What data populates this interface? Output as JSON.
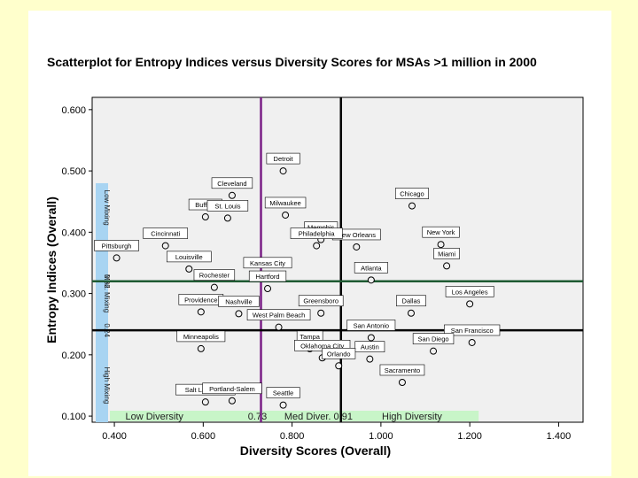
{
  "chart_data": {
    "type": "scatter",
    "title": "Scatterplot for Entropy Indices versus Diversity Scores for MSAs >1 million in 2000",
    "xlabel": "Diversity Scores (Overall)",
    "ylabel": "Entropy Indices (Overall)",
    "xlim": [
      0.35,
      1.455
    ],
    "ylim": [
      0.09,
      0.62
    ],
    "x_ticks": [
      "0.400",
      "0.600",
      "0.800",
      "1.000",
      "1.200",
      "1.400"
    ],
    "x_tick_values": [
      0.4,
      0.6,
      0.8,
      1.0,
      1.2,
      1.4
    ],
    "y_ticks": [
      "0.100",
      "0.200",
      "0.300",
      "0.400",
      "0.500",
      "0.600"
    ],
    "y_tick_values": [
      0.1,
      0.2,
      0.3,
      0.4,
      0.5,
      0.6
    ],
    "reference_lines": {
      "vertical": [
        {
          "x": 0.73,
          "color": "#7a1f86"
        },
        {
          "x": 0.91,
          "color": "#000000"
        }
      ],
      "horizontal": [
        {
          "y": 0.32,
          "color": "#1e5a32"
        },
        {
          "y": 0.24,
          "color": "#000000"
        }
      ]
    },
    "x_band": {
      "labels": [
        "Low Diversity",
        "0.73",
        "Med Diver.",
        "0.91",
        "High Diversity"
      ],
      "color": "#c8f5c8"
    },
    "y_band": {
      "labels": [
        "Low Mixing",
        "0.32",
        "Med. Mixing",
        "0.24",
        "High Mixing"
      ],
      "color": "#a8d4f2"
    },
    "points": [
      {
        "label": "Detroit",
        "x": 0.78,
        "y": 0.5
      },
      {
        "label": "Cleveland",
        "x": 0.665,
        "y": 0.46
      },
      {
        "label": "Buffalo",
        "x": 0.605,
        "y": 0.425
      },
      {
        "label": "Milwaukee",
        "x": 0.785,
        "y": 0.428
      },
      {
        "label": "St. Louis",
        "x": 0.655,
        "y": 0.423
      },
      {
        "label": "Chicago",
        "x": 1.07,
        "y": 0.443
      },
      {
        "label": "Cincinnati",
        "x": 0.515,
        "y": 0.378
      },
      {
        "label": "Memphis",
        "x": 0.865,
        "y": 0.388
      },
      {
        "label": "New Orleans",
        "x": 0.945,
        "y": 0.376
      },
      {
        "label": "New York",
        "x": 1.135,
        "y": 0.38
      },
      {
        "label": "Pittsburgh",
        "x": 0.405,
        "y": 0.358
      },
      {
        "label": "Philadelphia",
        "x": 0.855,
        "y": 0.378
      },
      {
        "label": "Miami",
        "x": 1.148,
        "y": 0.345
      },
      {
        "label": "Louisville",
        "x": 0.568,
        "y": 0.34
      },
      {
        "label": "Kansas City",
        "x": 0.745,
        "y": 0.33
      },
      {
        "label": "Atlanta",
        "x": 0.978,
        "y": 0.322
      },
      {
        "label": "Rochester",
        "x": 0.625,
        "y": 0.31
      },
      {
        "label": "Hartford",
        "x": 0.745,
        "y": 0.308
      },
      {
        "label": "Los Angeles",
        "x": 1.2,
        "y": 0.283
      },
      {
        "label": "Dallas",
        "x": 1.068,
        "y": 0.268
      },
      {
        "label": "Providence",
        "x": 0.595,
        "y": 0.27
      },
      {
        "label": "Nashville",
        "x": 0.68,
        "y": 0.267
      },
      {
        "label": "Greensboro",
        "x": 0.865,
        "y": 0.268
      },
      {
        "label": "West Palm Beach",
        "x": 0.77,
        "y": 0.245
      },
      {
        "label": "San Antonio",
        "x": 0.978,
        "y": 0.228
      },
      {
        "label": "San Francisco",
        "x": 1.205,
        "y": 0.22
      },
      {
        "label": "Minneapolis",
        "x": 0.595,
        "y": 0.21
      },
      {
        "label": "Tampa",
        "x": 0.84,
        "y": 0.21
      },
      {
        "label": "San Diego",
        "x": 1.118,
        "y": 0.206
      },
      {
        "label": "Oklahoma City",
        "x": 0.868,
        "y": 0.195
      },
      {
        "label": "Austin",
        "x": 0.975,
        "y": 0.193
      },
      {
        "label": "Orlando",
        "x": 0.905,
        "y": 0.182
      },
      {
        "label": "Sacramento",
        "x": 1.048,
        "y": 0.155
      },
      {
        "label": "Seattle",
        "x": 0.78,
        "y": 0.118
      },
      {
        "label": "Salt Lake City",
        "x": 0.605,
        "y": 0.123
      },
      {
        "label": "Portland-Salem",
        "x": 0.665,
        "y": 0.125
      }
    ]
  }
}
